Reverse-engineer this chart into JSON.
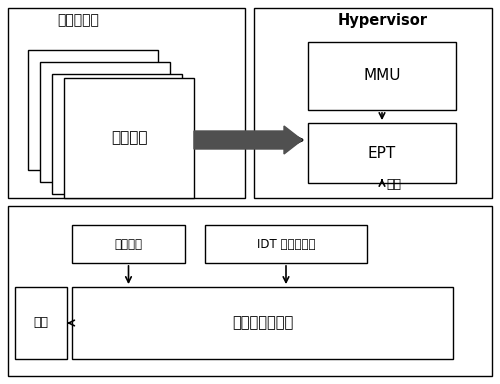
{
  "fig_bg": "#ffffff",
  "title_guest": "客户虚拟机",
  "title_hyp": "Hypervisor",
  "box_process": "进程页表",
  "box_mmu": "MMU",
  "box_ept": "EPT",
  "box_page_monitor": "页表监控",
  "box_idt": "IDT 拦截与记录",
  "box_log": "日志与关联分析",
  "box_alarm": "报警",
  "label_record": "记录",
  "edge_color": "#000000",
  "box_color": "#ffffff",
  "lw": 1.0,
  "arrow_lw": 1.2,
  "big_arrow_lw": 2.2,
  "big_arrow_ms": 16
}
